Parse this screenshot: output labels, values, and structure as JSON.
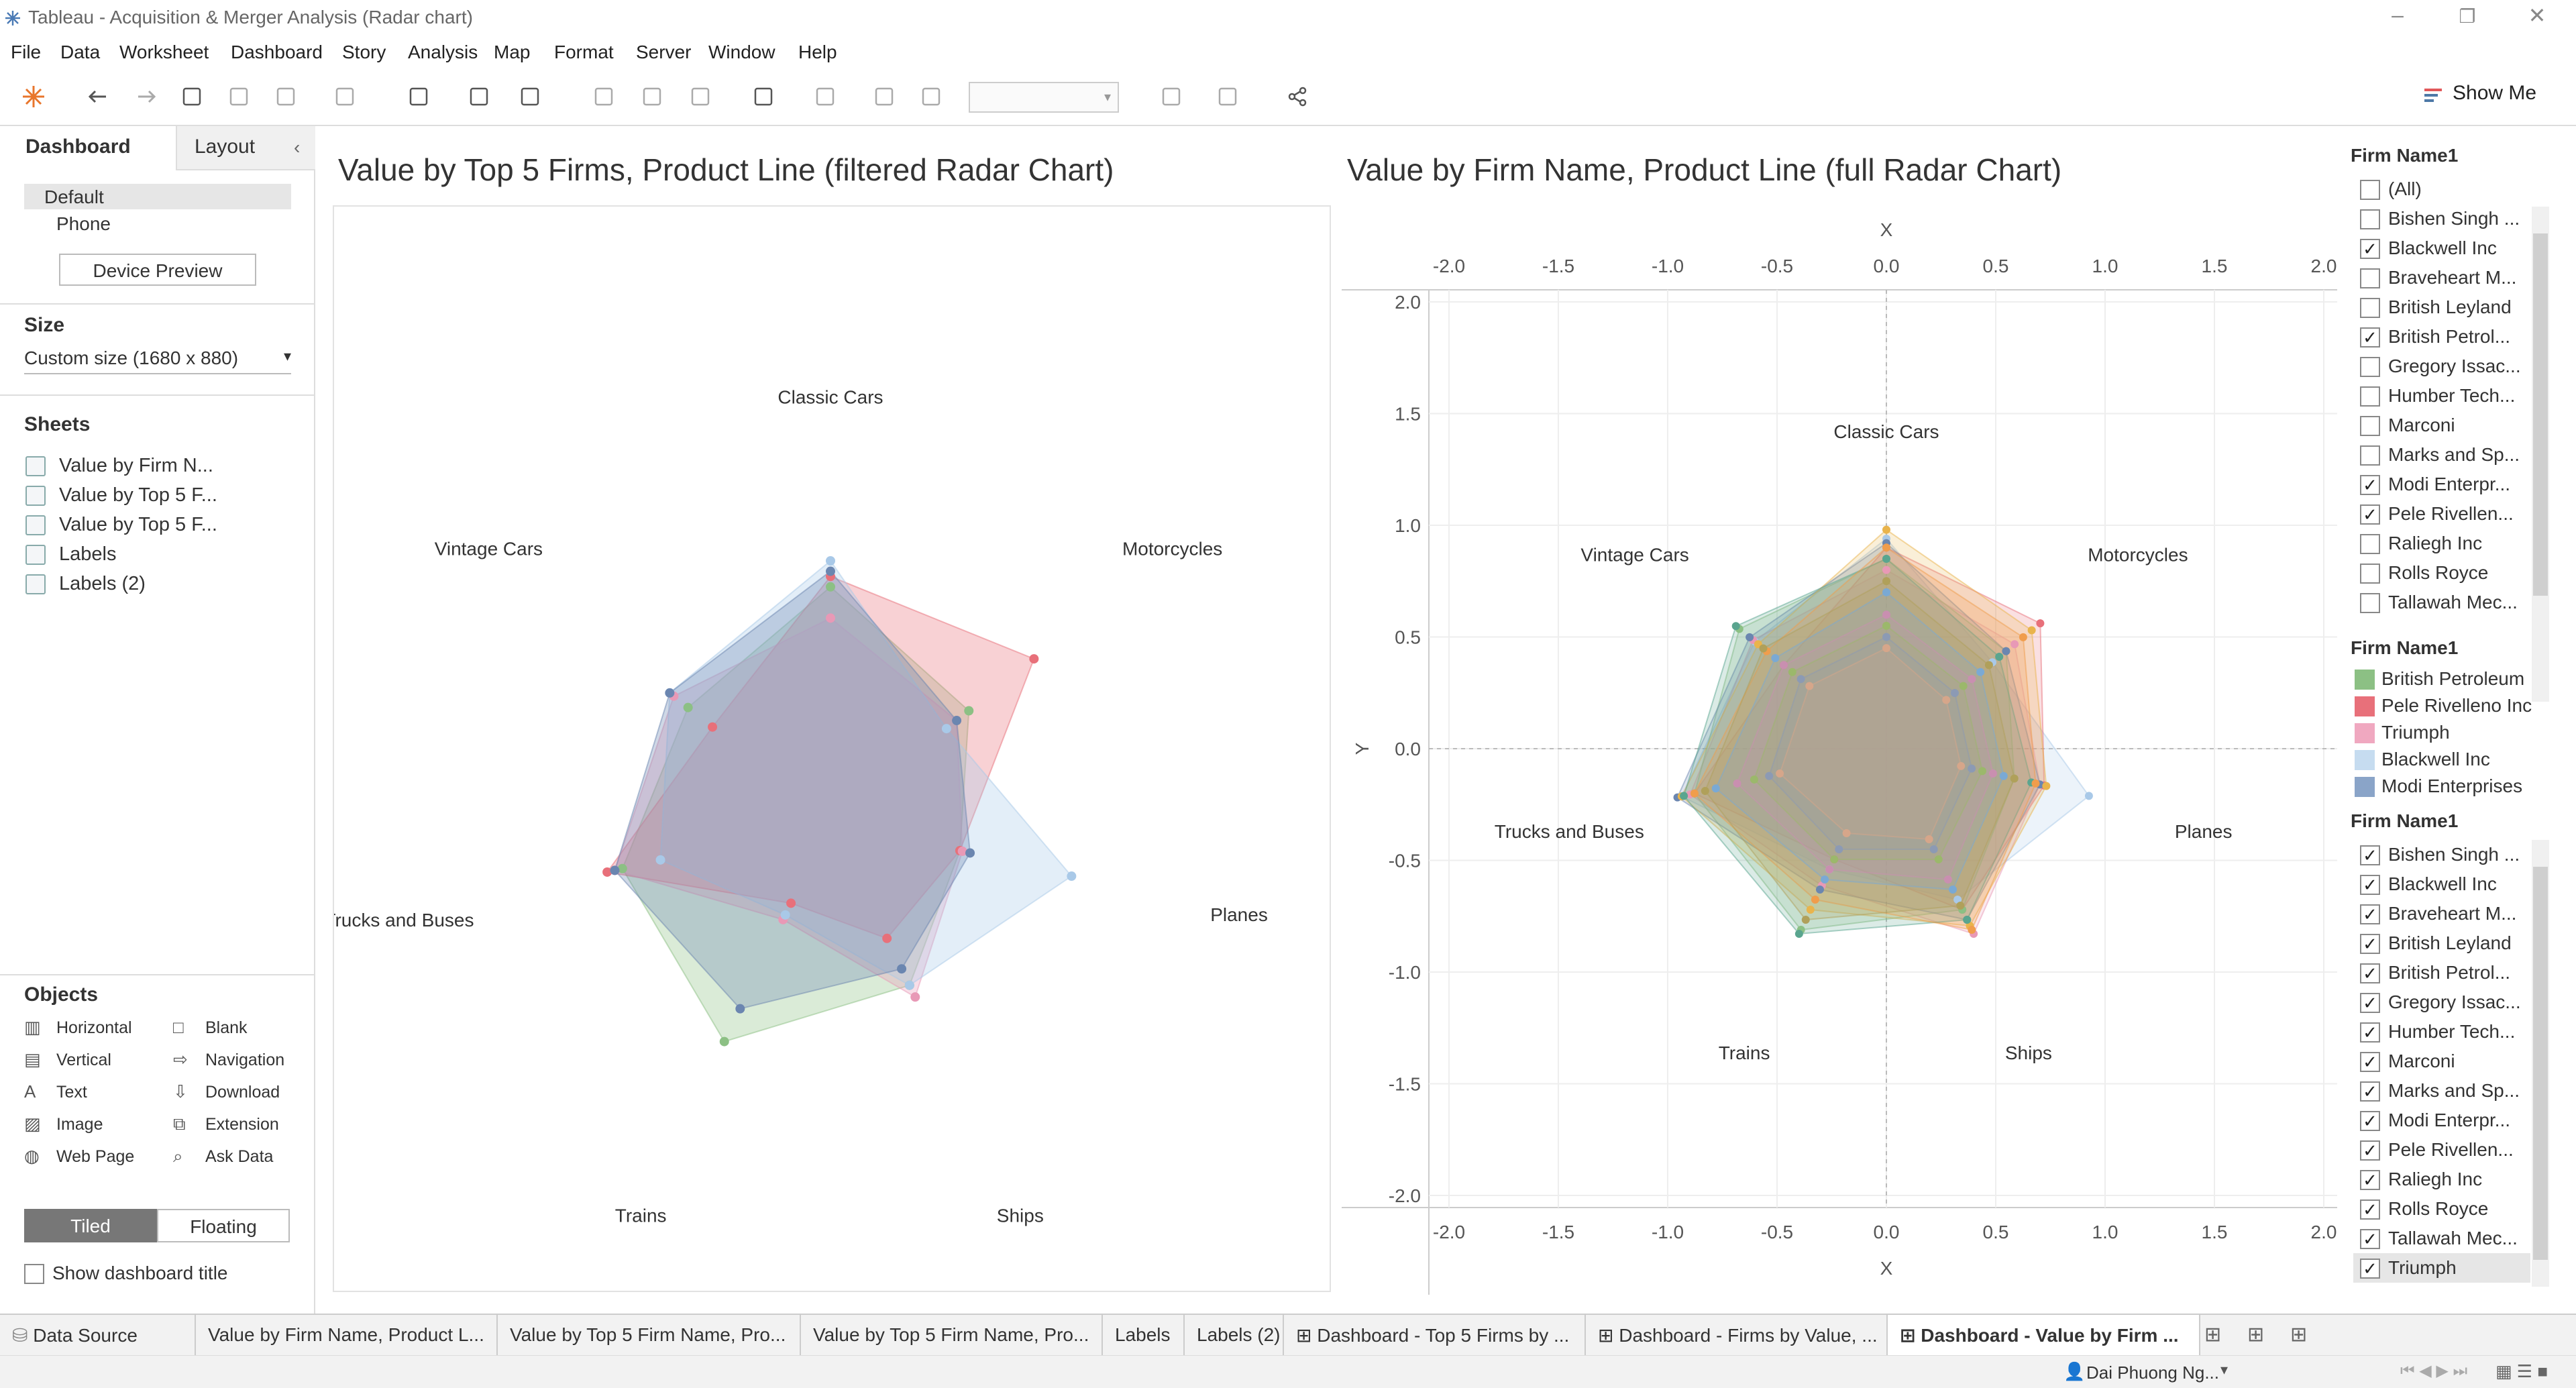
{
  "window": {
    "title": "Tableau - Acquisition & Merger Analysis (Radar chart)"
  },
  "menu": [
    "File",
    "Data",
    "Worksheet",
    "Dashboard",
    "Story",
    "Analysis",
    "Map",
    "Format",
    "Server",
    "Window",
    "Help"
  ],
  "toolbar": {
    "show_me": "Show Me",
    "icons": [
      "tableau-logo-icon",
      "undo-icon",
      "redo-icon",
      "save-icon",
      "new-datasource-icon",
      "pause-icon",
      "refresh-icon",
      "new-worksheet-icon",
      "duplicate-icon",
      "clear-icon",
      "swap-icon",
      "sort-asc-icon",
      "sort-desc-icon",
      "highlight-icon",
      "group-icon",
      "labels-icon",
      "fix-axes-icon",
      "fit-icon",
      "show-cards-icon",
      "presentation-icon",
      "share-icon"
    ]
  },
  "left_panel": {
    "tabs": [
      "Dashboard",
      "Layout"
    ],
    "devices": [
      "Default",
      "Phone"
    ],
    "device_preview": "Device Preview",
    "size_title": "Size",
    "size_value": "Custom size (1680 x 880)",
    "sheets_title": "Sheets",
    "sheets": [
      "Value by Firm N...",
      "Value by Top 5 F...",
      "Value by Top 5 F...",
      "Labels",
      "Labels (2)"
    ],
    "objects_title": "Objects",
    "objects": [
      {
        "label": "Horizontal",
        "icon": "horizontal-icon"
      },
      {
        "label": "Blank",
        "icon": "blank-icon"
      },
      {
        "label": "Vertical",
        "icon": "vertical-icon"
      },
      {
        "label": "Navigation",
        "icon": "navigation-icon"
      },
      {
        "label": "Text",
        "icon": "text-icon"
      },
      {
        "label": "Download",
        "icon": "download-icon"
      },
      {
        "label": "Image",
        "icon": "image-icon"
      },
      {
        "label": "Extension",
        "icon": "extension-icon"
      },
      {
        "label": "Web Page",
        "icon": "web-page-icon"
      },
      {
        "label": "Ask Data",
        "icon": "ask-data-icon"
      }
    ],
    "layout_modes": [
      "Tiled",
      "Floating"
    ],
    "show_title": "Show dashboard title"
  },
  "chart_data": [
    {
      "type": "radar",
      "title": "Value by Top 5 Firms, Product Line (filtered Radar Chart)",
      "categories": [
        "Classic Cars",
        "Motorcycles",
        "Planes",
        "Ships",
        "Trains",
        "Trucks and Buses",
        "Vintage Cars"
      ],
      "series": [
        {
          "name": "British Petroleum",
          "color": "#8cc084",
          "values": [
            0.9,
            0.68,
            0.51,
            0.7,
            0.94,
            0.82,
            0.7
          ]
        },
        {
          "name": "Pele Rivelleno Inc",
          "color": "#e8707a",
          "values": [
            0.94,
            1.0,
            0.51,
            0.5,
            0.35,
            0.88,
            0.58
          ]
        },
        {
          "name": "Triumph",
          "color": "#e899b6",
          "values": [
            0.78,
            0.62,
            0.52,
            0.75,
            0.42,
            0.85,
            0.77
          ]
        },
        {
          "name": "Blackwell Inc",
          "color": "#a9c9e8",
          "values": [
            1.0,
            0.57,
            0.95,
            0.7,
            0.4,
            0.67,
            0.79
          ]
        },
        {
          "name": "Modi Enterprises",
          "color": "#6b86b0",
          "values": [
            0.96,
            0.62,
            0.55,
            0.63,
            0.8,
            0.85,
            0.79
          ]
        }
      ]
    },
    {
      "type": "radar",
      "title": "Value by Firm Name, Product Line (full Radar Chart)",
      "xlabel": "X",
      "ylabel": "Y",
      "xlim": [
        -2.0,
        2.0
      ],
      "ylim": [
        -2.0,
        2.0
      ],
      "xticks": [
        "-2.0",
        "-1.5",
        "-1.0",
        "-0.5",
        "0.0",
        "0.5",
        "1.0",
        "1.5",
        "2.0"
      ],
      "yticks": [
        "2.0",
        "1.5",
        "1.0",
        "0.5",
        "0.0",
        "-0.5",
        "-1.0",
        "-1.5",
        "-2.0"
      ],
      "categories": [
        "Classic Cars",
        "Motorcycles",
        "Planes",
        "Ships",
        "Trains",
        "Trucks and Buses",
        "Vintage Cars"
      ],
      "series": [
        {
          "name": "Blackwell Inc",
          "color": "#a9c9e8",
          "values": [
            0.94,
            0.62,
            0.95,
            0.75,
            0.6,
            0.96,
            0.77
          ]
        },
        {
          "name": "Pele Rivelleno Inc",
          "color": "#e8707a",
          "values": [
            0.9,
            0.9,
            0.74,
            0.8,
            0.55,
            0.9,
            0.6
          ]
        },
        {
          "name": "Triumph",
          "color": "#e899b6",
          "values": [
            0.8,
            0.75,
            0.72,
            0.92,
            0.68,
            0.92,
            0.78
          ]
        },
        {
          "name": "British Petroleum",
          "color": "#8cc084",
          "values": [
            0.85,
            0.7,
            0.6,
            0.8,
            0.9,
            0.9,
            0.86
          ]
        },
        {
          "name": "Modi Enterprises",
          "color": "#6b86b0",
          "values": [
            0.92,
            0.7,
            0.72,
            0.85,
            0.7,
            0.98,
            0.8
          ]
        },
        {
          "name": "",
          "color": "#e9b44c",
          "values": [
            0.98,
            0.85,
            0.75,
            0.88,
            0.8,
            0.96,
            0.75
          ]
        },
        {
          "name": "",
          "color": "#5aa58f",
          "values": [
            0.85,
            0.66,
            0.68,
            0.85,
            0.92,
            0.95,
            0.88
          ]
        },
        {
          "name": "",
          "color": "#f09d4c",
          "values": [
            0.9,
            0.8,
            0.7,
            0.9,
            0.75,
            0.9,
            0.7
          ]
        },
        {
          "name": "",
          "color": "#b0a05a",
          "values": [
            0.75,
            0.6,
            0.6,
            0.78,
            0.85,
            0.85,
            0.72
          ]
        },
        {
          "name": "",
          "color": "#7aa9d4",
          "values": [
            0.7,
            0.55,
            0.55,
            0.7,
            0.65,
            0.8,
            0.65
          ]
        },
        {
          "name": "",
          "color": "#c98fb0",
          "values": [
            0.6,
            0.5,
            0.5,
            0.65,
            0.6,
            0.7,
            0.6
          ]
        },
        {
          "name": "",
          "color": "#9bb86b",
          "values": [
            0.55,
            0.45,
            0.45,
            0.55,
            0.55,
            0.62,
            0.55
          ]
        },
        {
          "name": "",
          "color": "#8c9ab4",
          "values": [
            0.5,
            0.4,
            0.4,
            0.5,
            0.5,
            0.55,
            0.5
          ]
        },
        {
          "name": "",
          "color": "#d6a68a",
          "values": [
            0.45,
            0.35,
            0.35,
            0.45,
            0.42,
            0.5,
            0.45
          ]
        }
      ]
    }
  ],
  "filter1": {
    "title": "Firm Name1",
    "items": [
      {
        "label": "(All)",
        "checked": false
      },
      {
        "label": "Bishen Singh ...",
        "checked": false
      },
      {
        "label": "Blackwell Inc",
        "checked": true
      },
      {
        "label": "Braveheart M...",
        "checked": false
      },
      {
        "label": "British Leyland",
        "checked": false
      },
      {
        "label": "British Petrol...",
        "checked": true
      },
      {
        "label": "Gregory Issac...",
        "checked": false
      },
      {
        "label": "Humber Tech...",
        "checked": false
      },
      {
        "label": "Marconi",
        "checked": false
      },
      {
        "label": "Marks and Sp...",
        "checked": false
      },
      {
        "label": "Modi Enterpr...",
        "checked": true
      },
      {
        "label": "Pele Rivellen...",
        "checked": true
      },
      {
        "label": "Raliegh Inc",
        "checked": false
      },
      {
        "label": "Rolls Royce",
        "checked": false
      },
      {
        "label": "Tallawah Mec...",
        "checked": false
      }
    ]
  },
  "legend": {
    "title": "Firm Name1",
    "items": [
      {
        "label": "British Petroleum",
        "color": "#8cc084"
      },
      {
        "label": "Pele Rivelleno Inc",
        "color": "#e8707a"
      },
      {
        "label": "Triumph",
        "color": "#f0a8c0"
      },
      {
        "label": "Blackwell Inc",
        "color": "#c6dcf0"
      },
      {
        "label": "Modi Enterprises",
        "color": "#8aa4c8"
      }
    ]
  },
  "filter2": {
    "title": "Firm Name1",
    "items": [
      {
        "label": "Bishen Singh ...",
        "checked": true
      },
      {
        "label": "Blackwell Inc",
        "checked": true
      },
      {
        "label": "Braveheart M...",
        "checked": true
      },
      {
        "label": "British Leyland",
        "checked": true
      },
      {
        "label": "British Petrol...",
        "checked": true
      },
      {
        "label": "Gregory Issac...",
        "checked": true
      },
      {
        "label": "Humber Tech...",
        "checked": true
      },
      {
        "label": "Marconi",
        "checked": true
      },
      {
        "label": "Marks and Sp...",
        "checked": true
      },
      {
        "label": "Modi Enterpr...",
        "checked": true
      },
      {
        "label": "Pele Rivellen...",
        "checked": true
      },
      {
        "label": "Raliegh Inc",
        "checked": true
      },
      {
        "label": "Rolls Royce",
        "checked": true
      },
      {
        "label": "Tallawah Mec...",
        "checked": true
      },
      {
        "label": "Triumph",
        "checked": true
      }
    ]
  },
  "tabs": {
    "data_source": "Data Source",
    "sheets": [
      "Value by Firm Name, Product L...",
      "Value by Top 5 Firm Name, Pro...",
      "Value by Top 5 Firm Name, Pro...",
      "Labels",
      "Labels (2)",
      "Dashboard - Top 5 Firms by ...",
      "Dashboard - Firms by Value, ...",
      "Dashboard - Value by Firm ..."
    ]
  },
  "status": {
    "user": "Dai Phuong Ng..."
  }
}
